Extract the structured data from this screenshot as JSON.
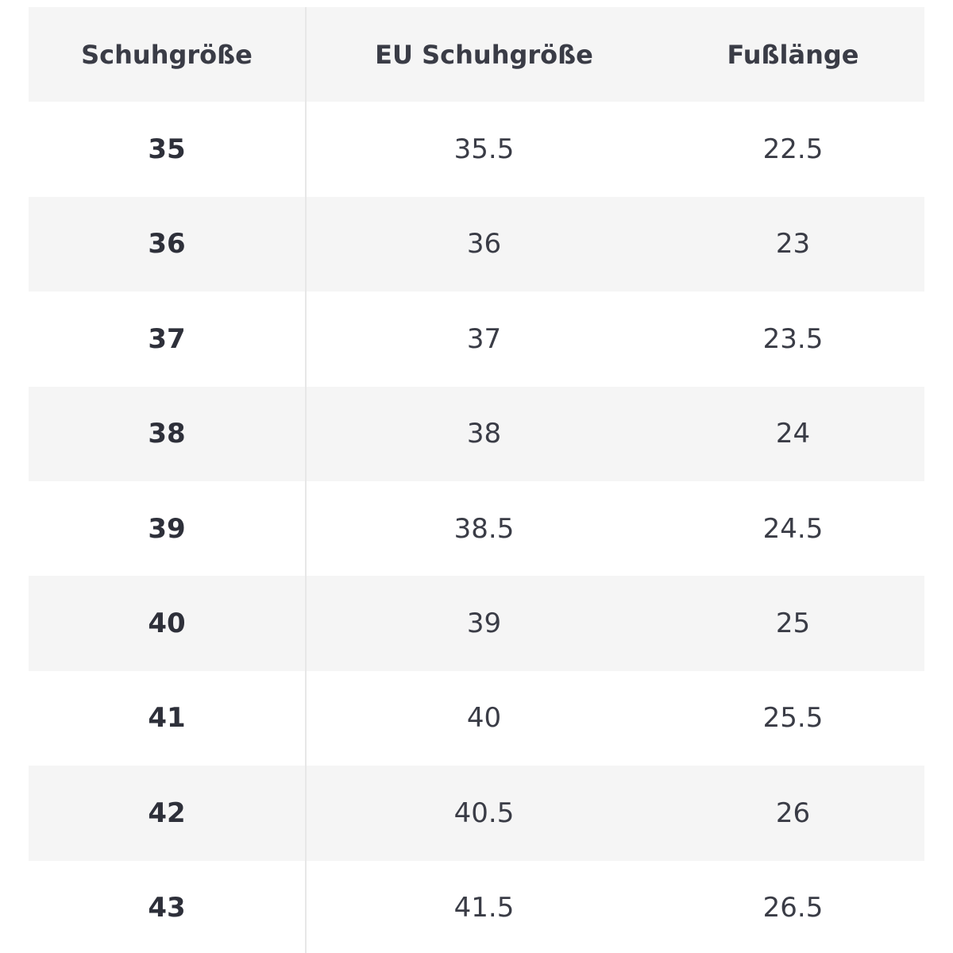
{
  "table": {
    "headers": [
      "Schuhgröße",
      "EU Schuhgröße",
      "Fußlänge"
    ],
    "rows": [
      [
        "35",
        "35.5",
        "22.5"
      ],
      [
        "36",
        "36",
        "23"
      ],
      [
        "37",
        "37",
        "23.5"
      ],
      [
        "38",
        "38",
        "24"
      ],
      [
        "39",
        "38.5",
        "24.5"
      ],
      [
        "40",
        "39",
        "25"
      ],
      [
        "41",
        "40",
        "25.5"
      ],
      [
        "42",
        "40.5",
        "26"
      ],
      [
        "43",
        "41.5",
        "26.5"
      ]
    ]
  },
  "colors": {
    "shaded_row": "#f5f5f5",
    "text": "#33353f",
    "divider": "#e7e7e7"
  }
}
